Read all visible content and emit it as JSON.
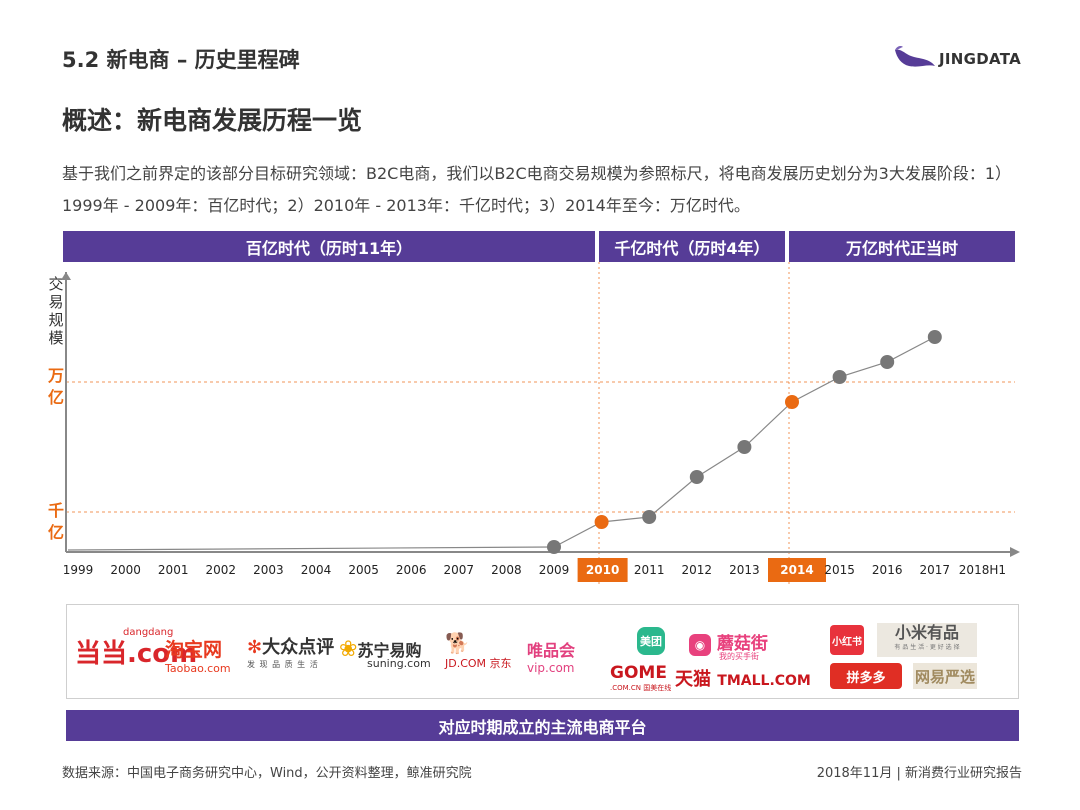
{
  "header": {
    "section_title": "5.2 新电商 – 历史里程碑",
    "brand": "JINGDATA",
    "main_title": "概述：新电商发展历程一览",
    "intro": "基于我们之前界定的该部分目标研究领域：B2C电商，我们以B2C电商交易规模为参照标尺，将电商发展历史划分为3大发展阶段：1）1999年 - 2009年：百亿时代；2）2010年 - 2013年：千亿时代；3）2014年至今：万亿时代。"
  },
  "eras": [
    {
      "label": "百亿时代（历时11年）"
    },
    {
      "label": "千亿时代（历时4年）"
    },
    {
      "label": "万亿时代正当时"
    }
  ],
  "chart_data": {
    "type": "line",
    "ylabel": "交易规模",
    "y_markers": [
      {
        "label": "万亿",
        "level": "万亿"
      },
      {
        "label": "千亿",
        "level": "千亿"
      }
    ],
    "categories": [
      "1999",
      "2000",
      "2001",
      "2002",
      "2003",
      "2004",
      "2005",
      "2006",
      "2007",
      "2008",
      "2009",
      "2010",
      "2011",
      "2012",
      "2013",
      "2014",
      "2015",
      "2016",
      "2017",
      "2018H1"
    ],
    "highlighted_categories": [
      "2010",
      "2014"
    ],
    "series": [
      {
        "x": [
          "2009",
          "2010",
          "2011",
          "2012",
          "2013",
          "2014",
          "2015",
          "2016",
          "2017"
        ],
        "values": [
          0.1,
          0.6,
          0.7,
          1.5,
          2.1,
          3.0,
          3.5,
          3.8,
          4.3
        ]
      }
    ],
    "y_scale": {
      "min": 0,
      "max": 5
    },
    "colors": {
      "line": "#888888",
      "point": "#777777",
      "highlight": "#ea6a12",
      "axis": "#888888"
    }
  },
  "platforms": {
    "logos": [
      {
        "name": "当当",
        "sub": "dangdang",
        "text": ".com",
        "color": "#d9262b"
      },
      {
        "name": "淘宝网",
        "sub": "Taobao.com",
        "color": "#e8391f"
      },
      {
        "name": "大众点评",
        "sub": "发 现 品 质 生 活",
        "color": "#333333"
      },
      {
        "name": "苏宁易购",
        "sub": "suning.com",
        "color": "#333333"
      },
      {
        "name": "京东",
        "sub": "JD.COM 京东",
        "color": "#c9171e"
      },
      {
        "name": "唯品会",
        "sub": "vip.com",
        "color": "#e2417f"
      },
      {
        "name": "美团",
        "color": "#2bb88d"
      },
      {
        "name": "蘑菇街",
        "sub": "我的买手街",
        "color": "#e8417d"
      },
      {
        "name": "GOME",
        "sub": ".COM.CN 国美在线",
        "color": "#c9171e"
      },
      {
        "name": "天猫",
        "sub": "TMALL.COM",
        "color": "#c9171e"
      },
      {
        "name": "小红书",
        "color": "#e8323c"
      },
      {
        "name": "小米有品",
        "sub": "有 品 生 活 · 更 好 选 择",
        "color": "#555555"
      },
      {
        "name": "拼多多",
        "color": "#e02e24"
      },
      {
        "name": "网易严选",
        "color": "#a08a5f"
      }
    ],
    "footer": "对应时期成立的主流电商平台"
  },
  "footer": {
    "source": "数据来源：中国电子商务研究中心，Wind，公开资料整理，鲸准研究院",
    "date": "2018年11月 | 新消费行业研究报告"
  }
}
